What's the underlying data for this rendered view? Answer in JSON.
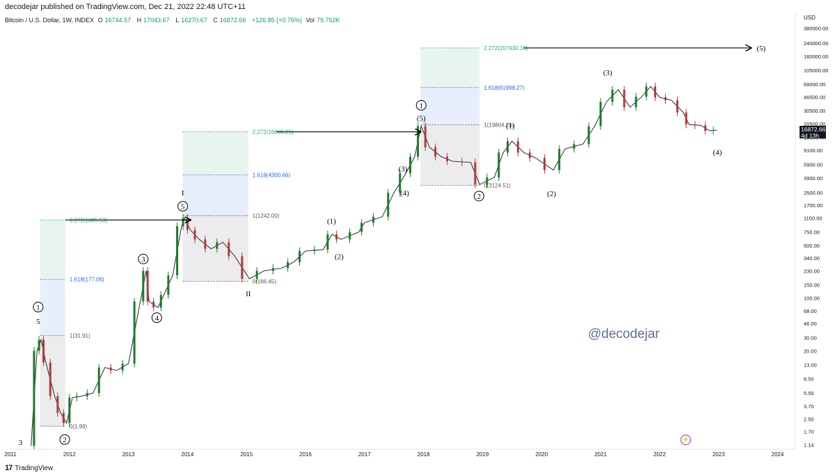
{
  "header": {
    "publisher": "decodejar published on TradingView.com, Dec 21, 2022 22:48 UTC+11"
  },
  "legend": {
    "symbol": "Bitcoin / U.S. Dollar, 1W, INDEX",
    "open_label": "O",
    "open": "16744.57",
    "high_label": "H",
    "high": "17043.67",
    "low_label": "L",
    "low": "16270.67",
    "close_label": "C",
    "close": "16872.66",
    "change": "+126.85 (+0.76%)",
    "vol_label": "Vol",
    "vol": "79.752K"
  },
  "price_badge": {
    "price": "16872.66",
    "countdown": "4d 13h"
  },
  "watermark": "@decodejar",
  "footer": {
    "brand": "TradingView",
    "mark": "17"
  },
  "colors": {
    "up": "#26a69a",
    "down": "#ef5350",
    "candle_up": "#1b7a2a",
    "candle_down": "#b23a3a",
    "fib_green": "#e8f5ee",
    "fib_blue": "#e8eefc",
    "fib_gray": "#ececee",
    "teal_text": "#22a68f",
    "blue_text": "#2962ff",
    "gray_text": "#555555"
  },
  "chart_data": {
    "type": "line",
    "title": "Bitcoin / U.S. Dollar, 1W, INDEX",
    "yscale": "log",
    "ylim": [
      1.1,
      400000
    ],
    "xlim": [
      2011.0,
      2024.3
    ],
    "currency_label": "USD",
    "y_ticks": [
      "380000.00",
      "240000.00",
      "160000.00",
      "105000.00",
      "69000.00",
      "46500.00",
      "30500.00",
      "20500.00",
      "13500.00",
      "9100.00",
      "5900.00",
      "3900.00",
      "2500.00",
      "1700.00",
      "1150.00",
      "750.00",
      "500.00",
      "340.00",
      "230.00",
      "150.00",
      "100.00",
      "68.00",
      "46.00",
      "30.00",
      "20.00",
      "13.00",
      "8.50",
      "5.50",
      "3.70",
      "2.50",
      "1.70",
      "1.14"
    ],
    "x_ticks": [
      "2011",
      "2012",
      "2013",
      "2014",
      "2015",
      "2016",
      "2017",
      "2018",
      "2019",
      "2020",
      "2021",
      "2022",
      "2023",
      "2024"
    ],
    "price_path": [
      [
        2011.35,
        1.1
      ],
      [
        2011.45,
        20
      ],
      [
        2011.52,
        28
      ],
      [
        2011.6,
        14
      ],
      [
        2011.75,
        5
      ],
      [
        2011.85,
        3
      ],
      [
        2011.95,
        2.2
      ],
      [
        2012.05,
        4.8
      ],
      [
        2012.2,
        5
      ],
      [
        2012.4,
        5.5
      ],
      [
        2012.6,
        12
      ],
      [
        2012.8,
        11
      ],
      [
        2013.0,
        13.5
      ],
      [
        2013.2,
        90
      ],
      [
        2013.3,
        230
      ],
      [
        2013.35,
        90
      ],
      [
        2013.5,
        75
      ],
      [
        2013.6,
        110
      ],
      [
        2013.75,
        200
      ],
      [
        2013.9,
        900
      ],
      [
        2013.95,
        1150
      ],
      [
        2014.05,
        800
      ],
      [
        2014.2,
        600
      ],
      [
        2014.4,
        450
      ],
      [
        2014.6,
        550
      ],
      [
        2014.8,
        360
      ],
      [
        2015.05,
        180
      ],
      [
        2015.3,
        230
      ],
      [
        2015.6,
        250
      ],
      [
        2015.8,
        300
      ],
      [
        2016.0,
        420
      ],
      [
        2016.3,
        440
      ],
      [
        2016.45,
        700
      ],
      [
        2016.6,
        600
      ],
      [
        2016.9,
        750
      ],
      [
        2017.0,
        1000
      ],
      [
        2017.3,
        1200
      ],
      [
        2017.5,
        2500
      ],
      [
        2017.7,
        4500
      ],
      [
        2017.85,
        7500
      ],
      [
        2017.96,
        19000
      ],
      [
        2018.1,
        10000
      ],
      [
        2018.3,
        7500
      ],
      [
        2018.5,
        6500
      ],
      [
        2018.8,
        6300
      ],
      [
        2018.95,
        3200
      ],
      [
        2019.2,
        4000
      ],
      [
        2019.35,
        8500
      ],
      [
        2019.5,
        12000
      ],
      [
        2019.7,
        8500
      ],
      [
        2019.9,
        7200
      ],
      [
        2020.2,
        5000
      ],
      [
        2020.4,
        9500
      ],
      [
        2020.7,
        11000
      ],
      [
        2020.9,
        19000
      ],
      [
        2021.1,
        40000
      ],
      [
        2021.3,
        58000
      ],
      [
        2021.5,
        34000
      ],
      [
        2021.7,
        47000
      ],
      [
        2021.85,
        64000
      ],
      [
        2022.0,
        46000
      ],
      [
        2022.2,
        42000
      ],
      [
        2022.4,
        29000
      ],
      [
        2022.5,
        20000
      ],
      [
        2022.7,
        19500
      ],
      [
        2022.85,
        16500
      ],
      [
        2022.97,
        16872
      ]
    ],
    "fib_blocks": [
      {
        "levels": [
          {
            "label": "2.272(1085.53)",
            "value": 1085.53,
            "color": "teal"
          },
          {
            "label": "1.618(177.06)",
            "value": 177.06,
            "color": "blue"
          },
          {
            "label": "1(31.91)",
            "value": 31.91,
            "color": "gray"
          },
          {
            "label": "0(1.99)",
            "value": 1.99,
            "color": "gray"
          }
        ],
        "x0": 2011.5,
        "x1": 2011.93
      },
      {
        "levels": [
          {
            "label": "2.272(16009.25)",
            "value": 16009.25,
            "color": "teal"
          },
          {
            "label": "1.618(4300.66)",
            "value": 4300.66,
            "color": "blue"
          },
          {
            "label": "1(1242.00)",
            "value": 1242.0,
            "color": "gray"
          },
          {
            "label": "0(166.45)",
            "value": 166.45,
            "color": "gray"
          }
        ],
        "x0": 2013.92,
        "x1": 2015.03
      },
      {
        "levels": [
          {
            "label": "2.272(207430.16)",
            "value": 207430.16,
            "color": "teal"
          },
          {
            "label": "1.618(61998.27)",
            "value": 61998.27,
            "color": "blue"
          },
          {
            "label": "1(19804.23)",
            "value": 19804.23,
            "color": "gray"
          },
          {
            "label": "0(3124.51)",
            "value": 3124.51,
            "color": "gray"
          }
        ],
        "x0": 2017.95,
        "x1": 2018.95
      }
    ],
    "arrows": [
      {
        "from": [
          2011.93,
          1085.53
        ],
        "to": [
          2014.05,
          1085.53
        ]
      },
      {
        "from": [
          2015.5,
          16009.25
        ],
        "to": [
          2017.95,
          16009.25
        ]
      },
      {
        "from": [
          2019.7,
          207430.16
        ],
        "to": [
          2023.55,
          207430.16
        ]
      }
    ],
    "wave_labels": [
      {
        "text": "3",
        "x": 2011.17,
        "y": 1.22,
        "circle": false
      },
      {
        "text": "1",
        "x": 2011.47,
        "y": 76,
        "circle": true
      },
      {
        "text": "5",
        "x": 2011.47,
        "y": 49,
        "circle": false
      },
      {
        "text": "2",
        "x": 2011.92,
        "y": 1.33,
        "circle": true
      },
      {
        "text": "3",
        "x": 2013.25,
        "y": 330,
        "circle": true
      },
      {
        "text": "4",
        "x": 2013.48,
        "y": 55,
        "circle": true
      },
      {
        "text": "I",
        "x": 2013.92,
        "y": 2500,
        "circle": false
      },
      {
        "text": "5",
        "x": 2013.92,
        "y": 1650,
        "circle": true
      },
      {
        "text": "II",
        "x": 2015.03,
        "y": 115,
        "circle": false
      },
      {
        "text": "(1)",
        "x": 2016.44,
        "y": 1060,
        "circle": false
      },
      {
        "text": "(2)",
        "x": 2016.57,
        "y": 360,
        "circle": false
      },
      {
        "text": "(3)",
        "x": 2017.65,
        "y": 5200,
        "circle": false
      },
      {
        "text": "(4)",
        "x": 2017.68,
        "y": 2500,
        "circle": false
      },
      {
        "text": "1",
        "x": 2017.96,
        "y": 36000,
        "circle": true
      },
      {
        "text": "(5)",
        "x": 2017.96,
        "y": 24500,
        "circle": false
      },
      {
        "text": "(1)",
        "x": 2019.47,
        "y": 19500,
        "circle": false
      },
      {
        "text": "2",
        "x": 2018.94,
        "y": 2250,
        "circle": true
      },
      {
        "text": "(2)",
        "x": 2020.17,
        "y": 2450,
        "circle": false
      },
      {
        "text": "(3)",
        "x": 2021.12,
        "y": 98000,
        "circle": false
      },
      {
        "text": "(4)",
        "x": 2022.98,
        "y": 8700,
        "circle": false
      },
      {
        "text": "(5)",
        "x": 2023.72,
        "y": 207430,
        "circle": false
      }
    ]
  }
}
